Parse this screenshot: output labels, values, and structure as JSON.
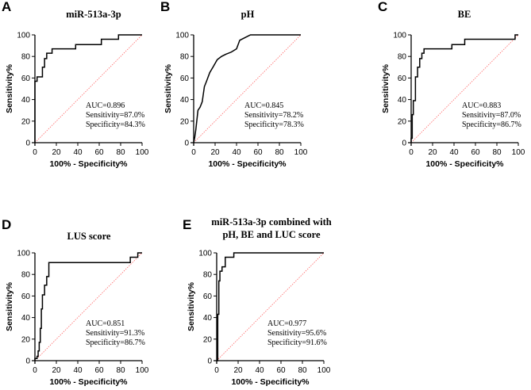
{
  "chart_data": [
    {
      "panel": "A",
      "type": "line",
      "title": [
        "miR-513a-3p"
      ],
      "xlabel": "100% - Specificity%",
      "ylabel": "Sensitivity%",
      "xlim": [
        0,
        100
      ],
      "ylim": [
        0,
        100
      ],
      "xticks": [
        0,
        20,
        40,
        60,
        80,
        100
      ],
      "yticks": [
        0,
        20,
        40,
        60,
        80,
        100
      ],
      "stats": [
        "AUC=0.896",
        "Sensitivity=87.0%",
        "Specificity=84.3%"
      ],
      "reference_line": {
        "x": [
          0,
          100
        ],
        "y": [
          0,
          100
        ],
        "color": "#ff6666"
      },
      "series": [
        {
          "name": "miR-513a-3p",
          "x": [
            0,
            0,
            2,
            2,
            7,
            7,
            9,
            9,
            11,
            11,
            13,
            13,
            16,
            16,
            38,
            38,
            62,
            62,
            78,
            78,
            100
          ],
          "y": [
            0,
            57,
            57,
            61,
            61,
            70,
            70,
            78,
            78,
            83,
            83,
            83,
            83,
            87,
            87,
            91,
            91,
            96,
            96,
            100,
            100
          ]
        }
      ]
    },
    {
      "panel": "B",
      "type": "line",
      "title": [
        "pH"
      ],
      "xlabel": "100% - Specificity%",
      "ylabel": "Sensitivity%",
      "xlim": [
        0,
        100
      ],
      "ylim": [
        0,
        100
      ],
      "xticks": [
        0,
        20,
        40,
        60,
        80,
        100
      ],
      "yticks": [
        0,
        20,
        40,
        60,
        80,
        100
      ],
      "stats": [
        "AUC=0.845",
        "Sensitivity=78.2%",
        "Specificity=78.3%"
      ],
      "reference_line": {
        "x": [
          0,
          100
        ],
        "y": [
          0,
          100
        ],
        "color": "#ff6666"
      },
      "series": [
        {
          "name": "pH",
          "x": [
            0,
            1,
            2,
            4,
            6,
            8,
            10,
            12,
            15,
            18,
            22,
            26,
            30,
            35,
            40,
            43,
            47,
            53,
            100
          ],
          "y": [
            0,
            5,
            12,
            30,
            33,
            38,
            52,
            57,
            65,
            70,
            77,
            80,
            82,
            84,
            87,
            95,
            97,
            100,
            100
          ]
        }
      ]
    },
    {
      "panel": "C",
      "type": "line",
      "title": [
        "BE"
      ],
      "xlabel": "100% - Specificity%",
      "ylabel": "Sensitivity%",
      "xlim": [
        0,
        100
      ],
      "ylim": [
        0,
        100
      ],
      "xticks": [
        0,
        20,
        40,
        60,
        80,
        100
      ],
      "yticks": [
        0,
        20,
        40,
        60,
        80,
        100
      ],
      "stats": [
        "AUC=0.883",
        "Sensitivity=87.0%",
        "Specificity=86.7%"
      ],
      "reference_line": {
        "x": [
          0,
          100
        ],
        "y": [
          0,
          100
        ],
        "color": "#ff6666"
      },
      "series": [
        {
          "name": "BE",
          "x": [
            0,
            0,
            1,
            1,
            2,
            2,
            4,
            4,
            6,
            6,
            8,
            8,
            10,
            10,
            12,
            12,
            38,
            38,
            50,
            50,
            97,
            97,
            100
          ],
          "y": [
            0,
            4,
            4,
            26,
            26,
            39,
            39,
            61,
            61,
            70,
            70,
            78,
            78,
            83,
            83,
            87,
            87,
            91,
            91,
            96,
            96,
            100,
            100
          ]
        }
      ]
    },
    {
      "panel": "D",
      "type": "line",
      "title": [
        "LUS score"
      ],
      "xlabel": "100% - Specificity%",
      "ylabel": "Sensitivity%",
      "xlim": [
        0,
        100
      ],
      "ylim": [
        0,
        100
      ],
      "xticks": [
        0,
        20,
        40,
        60,
        80,
        100
      ],
      "yticks": [
        0,
        20,
        40,
        60,
        80,
        100
      ],
      "stats": [
        "AUC=0.851",
        "Sensitivity=91.3%",
        "Specificity=86.7%"
      ],
      "reference_line": {
        "x": [
          0,
          100
        ],
        "y": [
          0,
          100
        ],
        "color": "#ff6666"
      },
      "series": [
        {
          "name": "LUS score",
          "x": [
            0,
            0,
            2,
            2,
            3,
            3,
            4,
            4,
            5,
            5,
            6,
            6,
            7,
            7,
            9,
            9,
            11,
            11,
            13,
            13,
            89,
            89,
            96,
            96,
            100
          ],
          "y": [
            0,
            2,
            2,
            4,
            4,
            9,
            9,
            17,
            17,
            30,
            30,
            48,
            48,
            61,
            61,
            70,
            70,
            78,
            78,
            91,
            91,
            96,
            96,
            100,
            100
          ]
        }
      ]
    },
    {
      "panel": "E",
      "type": "line",
      "title": [
        "miR-513a-3p combined with",
        "pH, BE and LUC score"
      ],
      "xlabel": "100% - Specificity%",
      "ylabel": "Sensitivity%",
      "xlim": [
        0,
        100
      ],
      "ylim": [
        0,
        100
      ],
      "xticks": [
        0,
        20,
        40,
        60,
        80,
        100
      ],
      "yticks": [
        0,
        20,
        40,
        60,
        80,
        100
      ],
      "stats": [
        "AUC=0.977",
        "Sensitivity=95.6%",
        "Specificity=91.6%"
      ],
      "reference_line": {
        "x": [
          0,
          100
        ],
        "y": [
          0,
          100
        ],
        "color": "#ff6666"
      },
      "series": [
        {
          "name": "combined",
          "x": [
            0,
            1,
            1,
            2,
            2,
            3,
            3,
            5,
            5,
            8,
            8,
            16,
            16,
            100
          ],
          "y": [
            0,
            0,
            43,
            43,
            74,
            74,
            83,
            83,
            87,
            87,
            96,
            96,
            100,
            100
          ]
        }
      ]
    }
  ]
}
